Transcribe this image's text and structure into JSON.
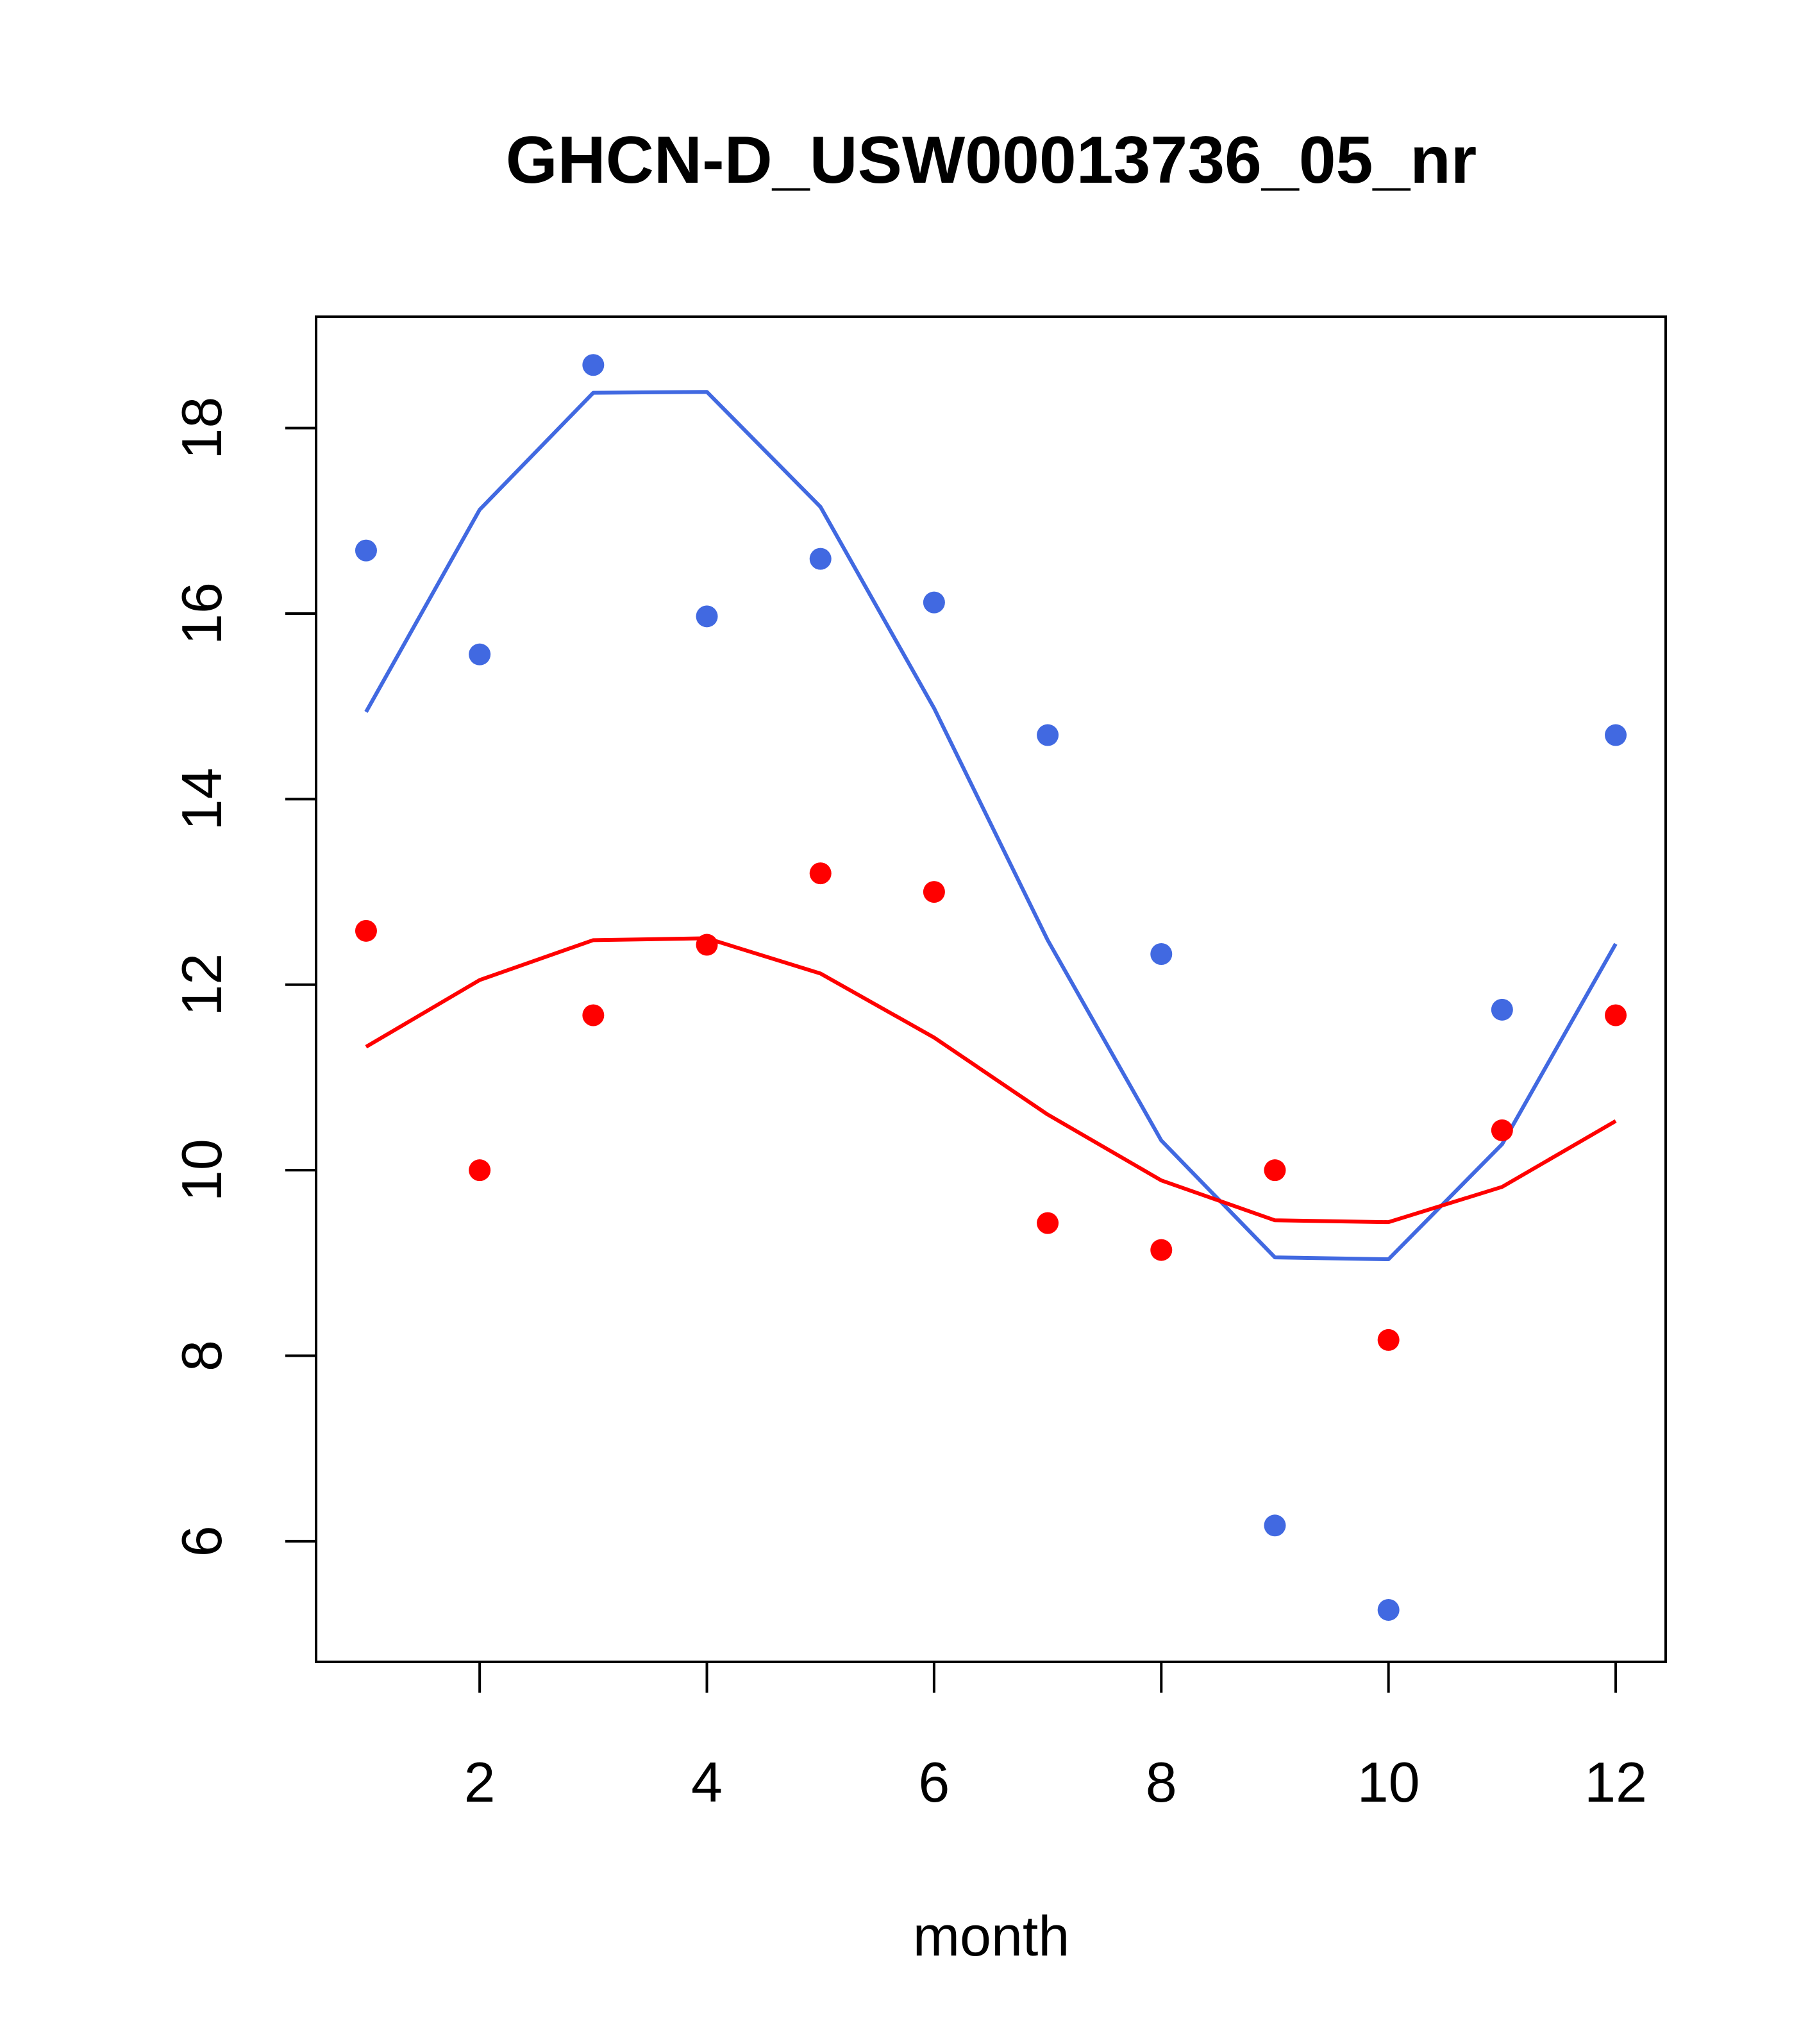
{
  "chart_data": {
    "type": "scatter",
    "title": "GHCN-D_USW00013736_05_nr",
    "xlabel": "month",
    "ylabel": "",
    "xlim": [
      0.56,
      12.44
    ],
    "ylim": [
      4.7,
      19.2
    ],
    "x_ticks": [
      2,
      4,
      6,
      8,
      10,
      12
    ],
    "y_ticks": [
      6,
      8,
      10,
      12,
      14,
      16,
      18
    ],
    "grid": false,
    "legend": "none",
    "series": [
      {
        "color": "#4169e1",
        "points": {
          "x": [
            1,
            2,
            3,
            4,
            5,
            6,
            7,
            8,
            9,
            10,
            11,
            12
          ],
          "y": [
            16.68,
            15.56,
            18.68,
            15.97,
            16.59,
            16.12,
            14.69,
            12.33,
            6.17,
            5.26,
            11.73,
            14.69
          ]
        },
        "fit": {
          "x": [
            1,
            2,
            3,
            4,
            5,
            6,
            7,
            8,
            9,
            10,
            11,
            12
          ],
          "y": [
            14.94,
            17.12,
            18.38,
            18.39,
            17.15,
            14.98,
            12.48,
            10.32,
            9.06,
            9.04,
            10.28,
            12.44
          ]
        }
      },
      {
        "color": "#ff0000",
        "points": {
          "x": [
            1,
            2,
            3,
            4,
            5,
            6,
            7,
            8,
            9,
            10,
            11,
            12
          ],
          "y": [
            12.58,
            10.0,
            11.67,
            12.43,
            13.2,
            13.0,
            9.43,
            9.14,
            10.0,
            8.17,
            10.43,
            11.67
          ]
        },
        "fit": {
          "x": [
            1,
            2,
            3,
            4,
            5,
            6,
            7,
            8,
            9,
            10,
            11,
            12
          ],
          "y": [
            11.33,
            12.05,
            12.48,
            12.5,
            12.12,
            11.43,
            10.6,
            9.89,
            9.46,
            9.44,
            9.82,
            10.53
          ]
        }
      }
    ]
  }
}
